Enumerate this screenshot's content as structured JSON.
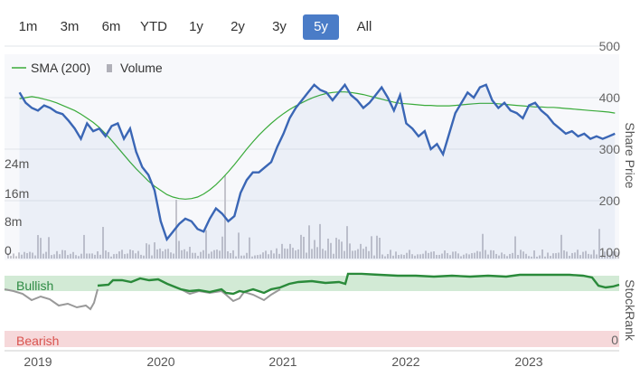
{
  "range_selector": {
    "buttons": [
      "1m",
      "3m",
      "6m",
      "YTD",
      "1y",
      "2y",
      "3y",
      "5y",
      "All"
    ],
    "selected": "5y",
    "active_color": "#4a7cc7"
  },
  "legend": {
    "sma_label": "SMA (200)",
    "volume_label": "Volume"
  },
  "stockrank": {
    "bullish_label": "Bullish",
    "bearish_label": "Bearish",
    "axis_label": "StockRank",
    "bearish_tick": "0"
  },
  "colors": {
    "price": "#3a66b5",
    "sma": "#3aab3a",
    "volume": "#c4c4cc",
    "rank_line": "#2a8a3a",
    "rank_gray": "#999999",
    "bullish_band": "#d2ead5",
    "bearish_band": "#f6d8da",
    "bullish_text": "#2e8b44",
    "bearish_text": "#d9534f"
  },
  "chart_data": [
    {
      "type": "line",
      "name": "price",
      "ylabel": "Share Price",
      "ylim": [
        100,
        500
      ],
      "y_ticks": [
        "100",
        "200",
        "300",
        "400",
        "500"
      ],
      "x_ticks": [
        "2019",
        "2020",
        "2021",
        "2022",
        "2023"
      ],
      "x": [
        2018.85,
        2018.9,
        2018.95,
        2019.0,
        2019.05,
        2019.1,
        2019.15,
        2019.2,
        2019.25,
        2019.3,
        2019.35,
        2019.4,
        2019.45,
        2019.5,
        2019.55,
        2019.6,
        2019.65,
        2019.7,
        2019.75,
        2019.8,
        2019.85,
        2019.9,
        2019.95,
        2020.0,
        2020.05,
        2020.1,
        2020.15,
        2020.2,
        2020.25,
        2020.3,
        2020.35,
        2020.4,
        2020.45,
        2020.5,
        2020.55,
        2020.6,
        2020.65,
        2020.7,
        2020.75,
        2020.8,
        2020.85,
        2020.9,
        2020.95,
        2021.0,
        2021.05,
        2021.1,
        2021.15,
        2021.2,
        2021.25,
        2021.3,
        2021.35,
        2021.4,
        2021.45,
        2021.5,
        2021.55,
        2021.6,
        2021.65,
        2021.7,
        2021.75,
        2021.8,
        2021.85,
        2021.9,
        2021.95,
        2022.0,
        2022.05,
        2022.1,
        2022.15,
        2022.2,
        2022.25,
        2022.3,
        2022.35,
        2022.4,
        2022.45,
        2022.5,
        2022.55,
        2022.6,
        2022.65,
        2022.7,
        2022.75,
        2022.8,
        2022.85,
        2022.9,
        2022.95,
        2023.0,
        2023.05,
        2023.1,
        2023.15,
        2023.2,
        2023.25,
        2023.3,
        2023.35,
        2023.4,
        2023.45,
        2023.5,
        2023.55,
        2023.6,
        2023.65,
        2023.7
      ],
      "price": [
        410,
        390,
        380,
        375,
        385,
        380,
        372,
        368,
        355,
        340,
        320,
        350,
        335,
        340,
        325,
        345,
        350,
        320,
        340,
        295,
        265,
        250,
        220,
        160,
        125,
        140,
        155,
        165,
        160,
        145,
        140,
        165,
        185,
        175,
        160,
        170,
        215,
        240,
        255,
        255,
        265,
        275,
        305,
        330,
        360,
        380,
        395,
        410,
        425,
        415,
        410,
        395,
        410,
        425,
        405,
        395,
        380,
        390,
        405,
        420,
        400,
        375,
        405,
        350,
        340,
        325,
        335,
        300,
        310,
        290,
        330,
        370,
        390,
        410,
        400,
        420,
        425,
        395,
        380,
        390,
        375,
        370,
        360,
        385,
        390,
        375,
        365,
        350,
        340,
        330,
        335,
        325,
        330,
        320,
        325,
        320,
        325,
        330
      ],
      "sma": [
        398,
        400,
        402,
        400,
        397,
        394,
        390,
        385,
        380,
        375,
        368,
        360,
        352,
        342,
        330,
        317,
        303,
        289,
        275,
        262,
        250,
        238,
        228,
        220,
        212,
        207,
        204,
        203,
        204,
        207,
        213,
        221,
        231,
        243,
        256,
        270,
        285,
        300,
        314,
        327,
        339,
        350,
        360,
        369,
        377,
        384,
        390,
        396,
        401,
        405,
        408,
        410,
        411,
        411,
        410,
        408,
        406,
        403,
        400,
        397,
        394,
        391,
        389,
        388,
        387,
        386,
        385,
        385,
        384,
        384,
        384,
        385,
        386,
        387,
        388,
        389,
        389,
        389,
        388,
        387,
        386,
        385,
        384,
        383,
        382,
        382,
        381,
        381,
        380,
        379,
        378,
        377,
        376,
        375,
        374,
        373,
        372,
        370
      ]
    }
  ],
  "volume_axis": {
    "ticks": [
      "0",
      "8m",
      "16m",
      "24m"
    ]
  }
}
